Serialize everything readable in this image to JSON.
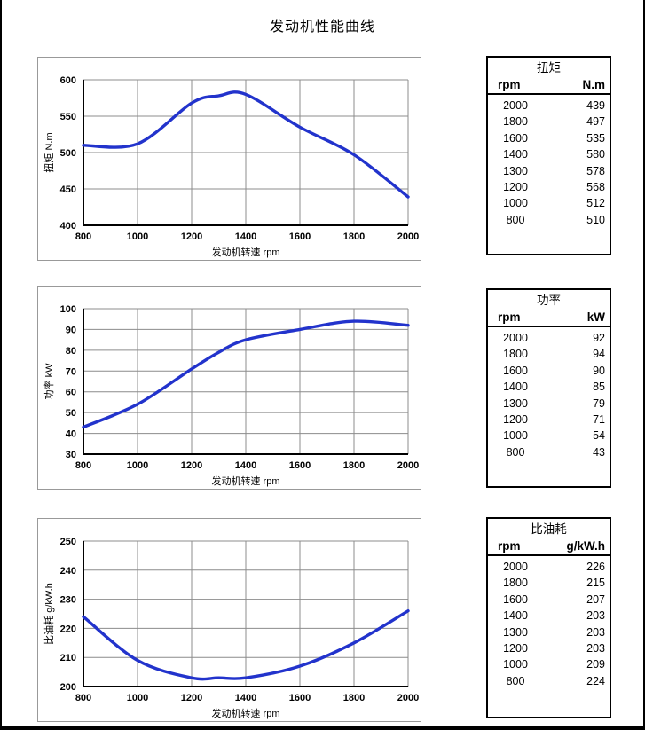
{
  "page_title": "发动机性能曲线",
  "colors": {
    "curve": "#2233cc",
    "grid": "#8c8c8c",
    "axis": "#000000",
    "chart_border": "#999999",
    "table_border": "#000000"
  },
  "chart_data": [
    {
      "id": "torque",
      "type": "line",
      "title": "",
      "xlabel": "发动机转速  rpm",
      "ylabel": "扭矩  N.m",
      "xlim": [
        800,
        2000
      ],
      "ylim": [
        400,
        600
      ],
      "xticks": [
        800,
        1000,
        1200,
        1400,
        1600,
        1800,
        2000
      ],
      "yticks": [
        400,
        450,
        500,
        550,
        600
      ],
      "x": [
        800,
        1000,
        1200,
        1300,
        1400,
        1600,
        1800,
        2000
      ],
      "y": [
        510,
        512,
        568,
        578,
        580,
        535,
        497,
        439
      ],
      "grid": true,
      "legend": false
    },
    {
      "id": "power",
      "type": "line",
      "title": "",
      "xlabel": "发动机转速  rpm",
      "ylabel": "功率  kW",
      "xlim": [
        800,
        2000
      ],
      "ylim": [
        30,
        100
      ],
      "xticks": [
        800,
        1000,
        1200,
        1400,
        1600,
        1800,
        2000
      ],
      "yticks": [
        30,
        40,
        50,
        60,
        70,
        80,
        90,
        100
      ],
      "x": [
        800,
        1000,
        1200,
        1300,
        1400,
        1600,
        1800,
        2000
      ],
      "y": [
        43,
        54,
        71,
        79,
        85,
        90,
        94,
        92
      ],
      "grid": true,
      "legend": false
    },
    {
      "id": "fuel",
      "type": "line",
      "title": "",
      "xlabel": "发动机转速  rpm",
      "ylabel": "比油耗  g/kW.h",
      "xlim": [
        800,
        2000
      ],
      "ylim": [
        200,
        250
      ],
      "xticks": [
        800,
        1000,
        1200,
        1400,
        1600,
        1800,
        2000
      ],
      "yticks": [
        200,
        210,
        220,
        230,
        240,
        250
      ],
      "x": [
        800,
        1000,
        1200,
        1300,
        1400,
        1600,
        1800,
        2000
      ],
      "y": [
        224,
        209,
        203,
        203,
        203,
        207,
        215,
        226
      ],
      "grid": true,
      "legend": false
    }
  ],
  "tables": [
    {
      "title": "扭矩",
      "col1": "rpm",
      "col2": "N.m",
      "rows": [
        [
          "2000",
          "439"
        ],
        [
          "1800",
          "497"
        ],
        [
          "1600",
          "535"
        ],
        [
          "1400",
          "580"
        ],
        [
          "1300",
          "578"
        ],
        [
          "1200",
          "568"
        ],
        [
          "1000",
          "512"
        ],
        [
          "800",
          "510"
        ]
      ]
    },
    {
      "title": "功率",
      "col1": "rpm",
      "col2": "kW",
      "rows": [
        [
          "2000",
          "92"
        ],
        [
          "1800",
          "94"
        ],
        [
          "1600",
          "90"
        ],
        [
          "1400",
          "85"
        ],
        [
          "1300",
          "79"
        ],
        [
          "1200",
          "71"
        ],
        [
          "1000",
          "54"
        ],
        [
          "800",
          "43"
        ]
      ]
    },
    {
      "title": "比油耗",
      "col1": "rpm",
      "col2": "g/kW.h",
      "rows": [
        [
          "2000",
          "226"
        ],
        [
          "1800",
          "215"
        ],
        [
          "1600",
          "207"
        ],
        [
          "1400",
          "203"
        ],
        [
          "1300",
          "203"
        ],
        [
          "1200",
          "203"
        ],
        [
          "1000",
          "209"
        ],
        [
          "800",
          "224"
        ]
      ]
    }
  ]
}
